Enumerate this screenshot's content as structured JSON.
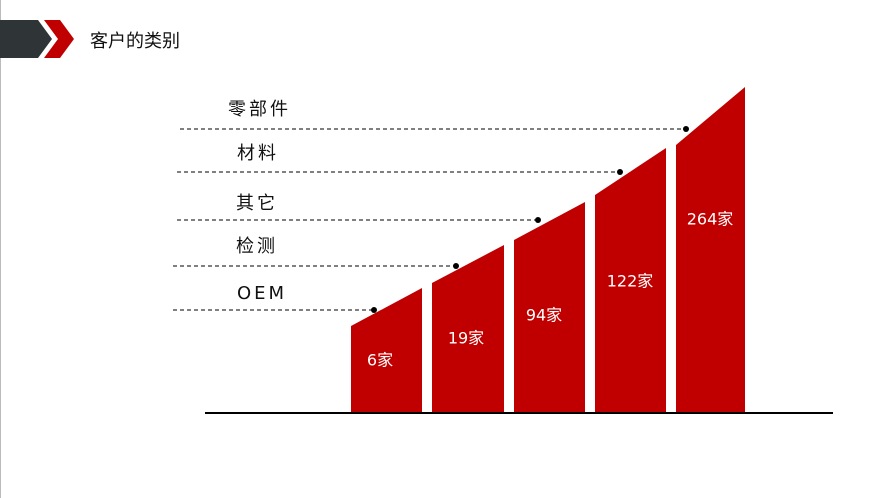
{
  "header": {
    "title": "客户的类别"
  },
  "items": [
    {
      "category": "OEM",
      "label": "6家"
    },
    {
      "category": "检测",
      "label": "19家"
    },
    {
      "category": "其它",
      "label": "94家"
    },
    {
      "category": "材料",
      "label": "122家"
    },
    {
      "category": "零部件",
      "label": "264家"
    }
  ]
}
